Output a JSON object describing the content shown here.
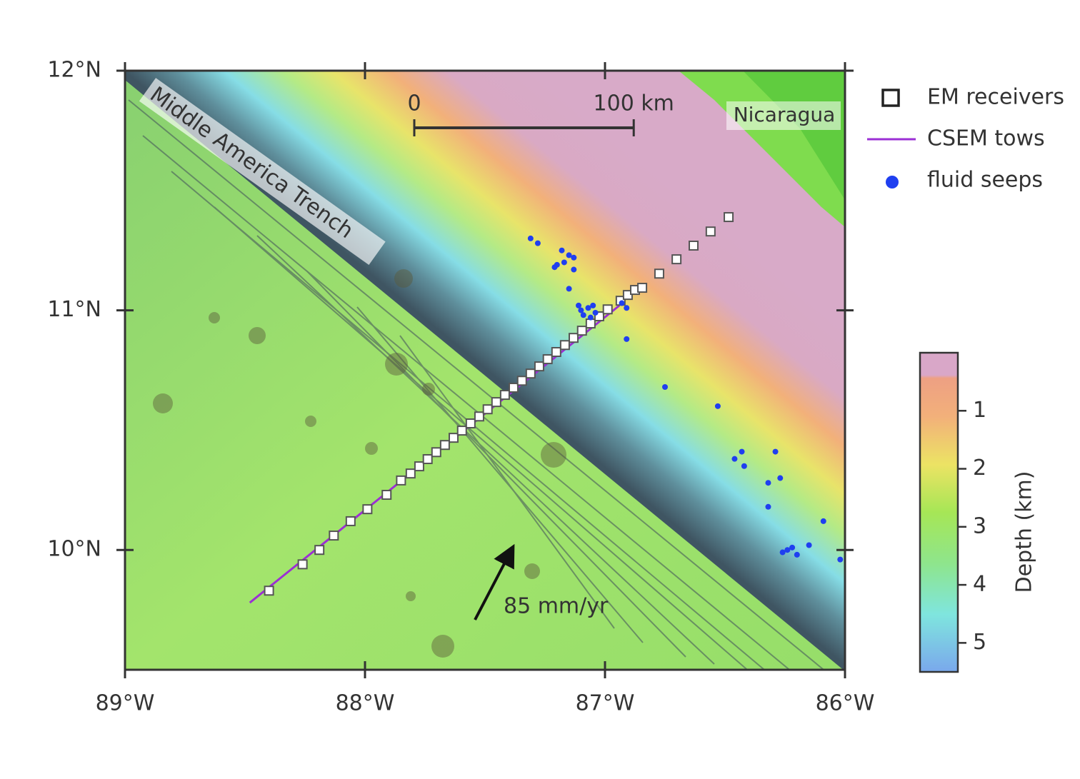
{
  "map": {
    "xlim": [
      -89,
      -86
    ],
    "ylim": [
      9.5,
      12
    ],
    "xticks": [
      {
        "value": -89,
        "label": "89°W"
      },
      {
        "value": -88,
        "label": "88°W"
      },
      {
        "value": -87,
        "label": "87°W"
      },
      {
        "value": -86,
        "label": "86°W"
      }
    ],
    "yticks": [
      {
        "value": 10,
        "label": "10°N"
      },
      {
        "value": 11,
        "label": "11°N"
      },
      {
        "value": 12,
        "label": "12°N"
      }
    ],
    "labels": {
      "trench": "Middle America Trench",
      "country": "Nicaragua",
      "plate_rate": "85 mm/yr"
    },
    "scale_bar": {
      "ticks": [
        0,
        {
          "value": 100,
          "label": "100 km"
        }
      ]
    },
    "tows": {
      "name": "CSEM tows",
      "color": "#9b2fd4",
      "lon": [
        -88.48,
        -86.94
      ],
      "lat": [
        9.78,
        11.02
      ]
    },
    "receivers": {
      "name": "EM receivers",
      "color": "#ffffff",
      "lon": [
        -88.4,
        -88.26,
        -88.19,
        -88.13,
        -88.06,
        -87.99,
        -87.91,
        -87.85,
        -87.81,
        -87.774,
        -87.739,
        -87.703,
        -87.667,
        -87.631,
        -87.596,
        -87.56,
        -87.524,
        -87.489,
        -87.453,
        -87.417,
        -87.381,
        -87.346,
        -87.31,
        -87.274,
        -87.239,
        -87.203,
        -87.167,
        -87.131,
        -87.096,
        -87.06,
        -87.024,
        -86.989,
        -86.935,
        -86.905,
        -86.875,
        -86.845,
        -86.774,
        -86.702,
        -86.631,
        -86.56,
        -86.485
      ],
      "lat": [
        9.83,
        9.94,
        10.0,
        10.06,
        10.12,
        10.17,
        10.23,
        10.29,
        10.319,
        10.349,
        10.379,
        10.408,
        10.438,
        10.468,
        10.498,
        10.528,
        10.557,
        10.587,
        10.617,
        10.647,
        10.677,
        10.706,
        10.736,
        10.766,
        10.796,
        10.826,
        10.855,
        10.885,
        10.915,
        10.945,
        10.975,
        11.004,
        11.04,
        11.064,
        11.085,
        11.094,
        11.153,
        11.213,
        11.27,
        11.329,
        11.389
      ]
    },
    "seeps": {
      "name": "fluid seeps",
      "color": "#1f3ff0",
      "lon": [
        -87.31,
        -87.28,
        -87.18,
        -87.15,
        -87.13,
        -87.2,
        -87.21,
        -87.17,
        -87.13,
        -87.15,
        -87.11,
        -87.1,
        -87.07,
        -87.05,
        -87.04,
        -87.06,
        -87.09,
        -86.93,
        -86.91,
        -86.91,
        -86.75,
        -86.53,
        -86.46,
        -86.43,
        -86.42,
        -86.29,
        -86.32,
        -86.27,
        -86.32,
        -86.09,
        -86.15,
        -86.22,
        -86.24,
        -86.26,
        -86.2,
        -86.02
      ],
      "lat": [
        11.3,
        11.28,
        11.25,
        11.23,
        11.22,
        11.19,
        11.18,
        11.2,
        11.17,
        11.09,
        11.02,
        11.0,
        11.01,
        11.02,
        10.99,
        10.97,
        10.98,
        11.03,
        11.01,
        10.88,
        10.68,
        10.6,
        10.38,
        10.41,
        10.35,
        10.41,
        10.28,
        10.3,
        10.18,
        10.12,
        10.02,
        10.01,
        10.0,
        9.99,
        9.98,
        9.96
      ]
    },
    "colorbar": {
      "label": "Depth (km)",
      "lim": [
        0,
        5.5
      ],
      "ticks": [
        1,
        2,
        3,
        4,
        5
      ]
    }
  }
}
